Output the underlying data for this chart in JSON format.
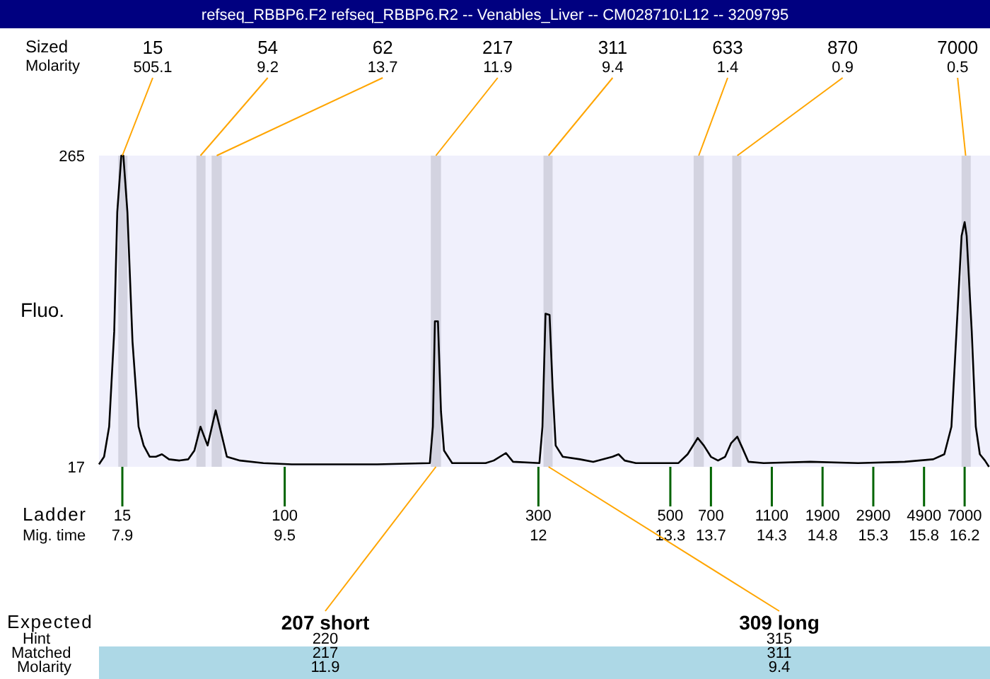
{
  "chart_data": {
    "type": "line",
    "title": "refseq_RBBP6.F2  refseq_RBBP6.R2 -- Venables_Liver -- CM028710:L12 -- 3209795",
    "ylabel": "Fluo.",
    "xlim": [
      7.67,
      16.45
    ],
    "ylim": [
      17,
      265
    ],
    "yticks": [
      17,
      265
    ],
    "xticks": [
      7.9,
      9.5,
      12,
      13.3,
      13.7,
      14.3,
      14.8,
      15.3,
      15.8,
      16.2
    ],
    "grid": false,
    "line_style": "solid",
    "series": [
      {
        "color": "#000000",
        "x": [
          7.67,
          7.72,
          7.77,
          7.82,
          7.85,
          7.89,
          7.91,
          7.95,
          8.0,
          8.06,
          8.11,
          8.17,
          8.23,
          8.29,
          8.36,
          8.46,
          8.55,
          8.61,
          8.67,
          8.74,
          8.82,
          8.88,
          8.93,
          9.06,
          9.29,
          9.57,
          10.41,
          10.93,
          10.96,
          10.98,
          11.01,
          11.04,
          11.07,
          11.15,
          11.48,
          11.56,
          11.68,
          11.75,
          12.01,
          12.04,
          12.07,
          12.11,
          12.14,
          12.17,
          12.24,
          12.41,
          12.54,
          12.73,
          12.79,
          12.85,
          12.96,
          13.38,
          13.47,
          13.57,
          13.63,
          13.7,
          13.77,
          13.84,
          13.9,
          13.96,
          14.01,
          14.07,
          14.22,
          14.68,
          15.15,
          15.61,
          15.89,
          16.0,
          16.07,
          16.12,
          16.17,
          16.2,
          16.22,
          16.27,
          16.31,
          16.35,
          16.4,
          16.44
        ],
        "values": [
          19,
          25,
          49,
          125,
          220,
          265,
          265,
          220,
          117,
          49,
          34,
          25,
          25,
          27,
          23,
          22,
          23,
          30,
          49,
          34,
          62,
          42,
          25,
          22,
          20,
          19,
          19,
          20,
          49,
          133,
          133,
          61,
          30,
          20,
          20,
          22,
          28,
          21,
          20,
          49,
          139,
          138,
          80,
          34,
          25,
          23,
          21,
          25,
          27,
          22,
          20,
          20,
          27,
          40,
          34,
          25,
          22,
          25,
          36,
          41,
          32,
          21,
          20,
          21,
          20,
          21,
          23,
          27,
          49,
          125,
          201,
          212,
          201,
          125,
          49,
          27,
          22,
          17
        ]
      }
    ],
    "bands": [
      {
        "axis": "x",
        "from": 7.86,
        "to": 7.95,
        "color": "#d3d3e0"
      },
      {
        "axis": "x",
        "from": 8.63,
        "to": 8.72,
        "color": "#d3d3e0"
      },
      {
        "axis": "x",
        "from": 8.78,
        "to": 8.88,
        "color": "#d3d3e0"
      },
      {
        "axis": "x",
        "from": 10.94,
        "to": 11.04,
        "color": "#d3d3e0"
      },
      {
        "axis": "x",
        "from": 12.05,
        "to": 12.14,
        "color": "#d3d3e0"
      },
      {
        "axis": "x",
        "from": 13.53,
        "to": 13.63,
        "color": "#d3d3e0"
      },
      {
        "axis": "x",
        "from": 13.91,
        "to": 14.0,
        "color": "#d3d3e0"
      },
      {
        "axis": "x",
        "from": 16.17,
        "to": 16.26,
        "color": "#d3d3e0"
      }
    ],
    "annotations": [
      "Sized",
      "Molarity",
      "Ladder",
      "Mig. time",
      "Expected",
      "Hint",
      "Matched",
      "Molarity",
      {
        "text": "15",
        "x": 7.9,
        "y": 265
      },
      {
        "text": "54",
        "x": 8.67,
        "y": 265
      },
      {
        "text": "62",
        "x": 8.83,
        "y": 265
      },
      {
        "text": "217",
        "x": 10.99,
        "y": 265
      },
      {
        "text": "311",
        "x": 12.1,
        "y": 265
      },
      {
        "text": "633",
        "x": 13.58,
        "y": 265
      },
      {
        "text": "870",
        "x": 13.96,
        "y": 265
      },
      {
        "text": "7000",
        "x": 16.21,
        "y": 265
      },
      "505.1",
      "9.2",
      "13.7",
      "11.9",
      "9.4",
      "1.4",
      "0.9",
      "0.5",
      "15",
      "100",
      "300",
      "500",
      "700",
      "1100",
      "1900",
      "2900",
      "4900",
      "7000",
      {
        "text": "207 short",
        "x": 10.99,
        "y": 17
      },
      {
        "text": "309 long",
        "x": 12.1,
        "y": 17
      },
      "220",
      "315",
      "217",
      "311",
      "11.9",
      "9.4"
    ]
  }
}
